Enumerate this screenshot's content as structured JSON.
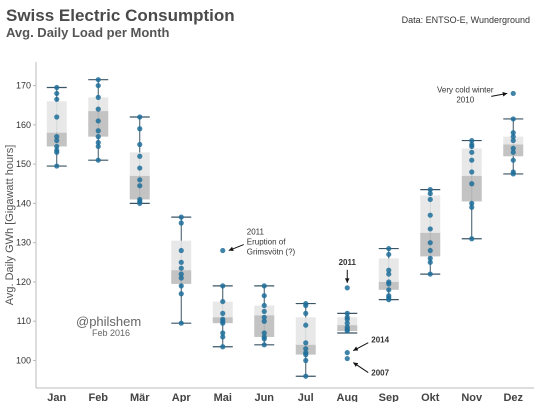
{
  "header": {
    "title": "Swiss Electric Consumption",
    "subtitle": "Avg. Daily Load per Month",
    "source": "Data: ENTSO-E, Wunderground"
  },
  "watermark": {
    "handle": "@philshem",
    "date": "Feb 2016"
  },
  "chart_data": {
    "type": "boxplot",
    "title": "Swiss Electric Consumption",
    "subtitle": "Avg. Daily Load per Month",
    "xlabel": "",
    "ylabel": "Avg. Daily GWh [Gigawatt hours]",
    "ylim": [
      93,
      176
    ],
    "yticks": [
      100,
      110,
      120,
      130,
      140,
      150,
      160,
      170
    ],
    "grid": false,
    "categories": [
      "Jan",
      "Feb",
      "Mär",
      "Apr",
      "Mai",
      "Jun",
      "Jul",
      "Aug",
      "Sep",
      "Okt",
      "Nov",
      "Dez"
    ],
    "boxes": [
      {
        "month": "Jan",
        "min": 149.5,
        "q1": 154.5,
        "median": 158,
        "q3": 166,
        "max": 169.5,
        "points": [
          169.5,
          168,
          166.5,
          162,
          157,
          156,
          154.5,
          153.5,
          153,
          149.5
        ]
      },
      {
        "month": "Feb",
        "min": 151,
        "q1": 157,
        "median": 163.5,
        "q3": 167,
        "max": 171.5,
        "points": [
          171.5,
          170,
          167,
          164,
          161,
          158.5,
          157,
          155.5,
          154.5,
          151
        ]
      },
      {
        "month": "Mär",
        "min": 140,
        "q1": 141,
        "median": 147,
        "q3": 153,
        "max": 162,
        "points": [
          162,
          159,
          155,
          152,
          149,
          146,
          144.5,
          141,
          140.5,
          140
        ]
      },
      {
        "month": "Apr",
        "min": 109.5,
        "q1": 119.5,
        "median": 123,
        "q3": 130.5,
        "max": 136.5,
        "points": [
          136.5,
          135,
          128,
          125,
          123.5,
          122,
          121,
          119,
          117,
          109.5
        ]
      },
      {
        "month": "Mai",
        "min": 103.5,
        "q1": 109.5,
        "median": 111,
        "q3": 115,
        "max": 119,
        "points": [
          128,
          119,
          115,
          112,
          110.5,
          110,
          109.5,
          107,
          106,
          103.5
        ]
      },
      {
        "month": "Jun",
        "min": 104,
        "q1": 106,
        "median": 111.5,
        "q3": 114,
        "max": 119,
        "points": [
          119,
          116.5,
          114,
          112.5,
          111,
          110,
          107,
          106,
          105.5,
          104
        ]
      },
      {
        "month": "Jul",
        "min": 96,
        "q1": 101.5,
        "median": 104,
        "q3": 111,
        "max": 114.5,
        "points": [
          114.5,
          114,
          112,
          109,
          104.5,
          103,
          102,
          101.5,
          100,
          96
        ]
      },
      {
        "month": "Aug",
        "min": 107,
        "q1": 107.5,
        "median": 109,
        "q3": 111,
        "max": 112,
        "points": [
          118.5,
          112,
          111,
          110.5,
          109.5,
          108.5,
          108,
          107.5,
          102,
          100.5
        ]
      },
      {
        "month": "Sep",
        "min": 115.5,
        "q1": 118,
        "median": 120,
        "q3": 126,
        "max": 128.5,
        "points": [
          128.5,
          127,
          123,
          122,
          120,
          119.5,
          118,
          116.5,
          116,
          115.5
        ]
      },
      {
        "month": "Okt",
        "min": 122,
        "q1": 126.5,
        "median": 132.5,
        "q3": 142,
        "max": 143.5,
        "points": [
          143.5,
          142.5,
          141,
          137,
          133.5,
          130,
          128,
          126,
          125,
          122
        ]
      },
      {
        "month": "Nov",
        "min": 131,
        "q1": 140.5,
        "median": 147,
        "q3": 154,
        "max": 156,
        "points": [
          156,
          155,
          154.5,
          153,
          151,
          148,
          145,
          140,
          139,
          131
        ]
      },
      {
        "month": "Dez",
        "min": 147.5,
        "q1": 152,
        "median": 155,
        "q3": 157,
        "max": 161.5,
        "points": [
          168,
          161.5,
          158,
          157,
          156,
          154,
          153,
          151,
          148,
          147.5
        ]
      }
    ],
    "annotations": [
      {
        "month": "Dez",
        "value": 168,
        "text": [
          "Very cold winter",
          "2010"
        ],
        "bold": false
      },
      {
        "month": "Mai",
        "value": 128,
        "text": [
          "2011",
          "Eruption of",
          "Grimsvötn (?)"
        ],
        "bold": false
      },
      {
        "month": "Aug",
        "value": 118.5,
        "text": [
          "2011"
        ],
        "bold": true
      },
      {
        "month": "Aug",
        "value": 102,
        "text": [
          "2014"
        ],
        "bold": true
      },
      {
        "month": "Aug",
        "value": 100.5,
        "text": [
          "2007"
        ],
        "bold": true
      }
    ]
  },
  "colors": {
    "point": "#1f6f9a",
    "box_upper": "#e5e5e5",
    "box_lower": "#bcbcbc",
    "whisker": "#3a5566",
    "axis": "#bbbbbb",
    "text": "#333333"
  }
}
